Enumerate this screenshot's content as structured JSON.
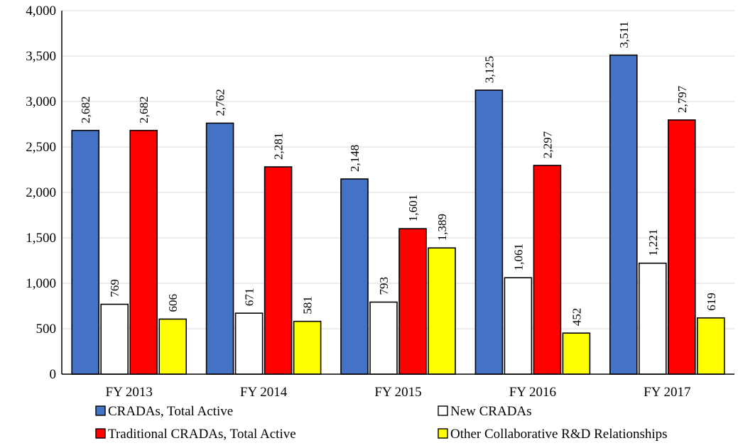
{
  "chart_data": {
    "type": "bar",
    "categories": [
      "FY 2013",
      "FY 2014",
      "FY 2015",
      "FY 2016",
      "FY 2017"
    ],
    "series": [
      {
        "name": "CRADAs, Total Active",
        "color": "#4472c4",
        "values": [
          2682,
          2762,
          2148,
          3125,
          3511
        ]
      },
      {
        "name": "New CRADAs",
        "color": "#ffffff",
        "values": [
          769,
          671,
          793,
          1061,
          1221
        ]
      },
      {
        "name": "Traditional CRADAs, Total Active",
        "color": "#ff0000",
        "values": [
          2682,
          2281,
          1601,
          2297,
          2797
        ]
      },
      {
        "name": "Other Collaborative R&D Relationships",
        "color": "#ffff00",
        "values": [
          606,
          581,
          1389,
          452,
          619
        ]
      }
    ],
    "ylim": [
      0,
      4000
    ],
    "yticks": [
      0,
      500,
      1000,
      1500,
      2000,
      2500,
      3000,
      3500,
      4000
    ],
    "ytick_labels": [
      "0",
      "500",
      "1,000",
      "1,500",
      "2,000",
      "2,500",
      "3,000",
      "3,500",
      "4,000"
    ],
    "data_labels": [
      [
        "2,682",
        "2,762",
        "2,148",
        "3,125",
        "3,511"
      ],
      [
        "769",
        "671",
        "793",
        "1,061",
        "1,221"
      ],
      [
        "2,682",
        "2,281",
        "1,601",
        "2,297",
        "2,797"
      ],
      [
        "606",
        "581",
        "1,389",
        "452",
        "619"
      ]
    ],
    "grid": true,
    "legend_position": "bottom",
    "title": "",
    "xlabel": "",
    "ylabel": ""
  }
}
